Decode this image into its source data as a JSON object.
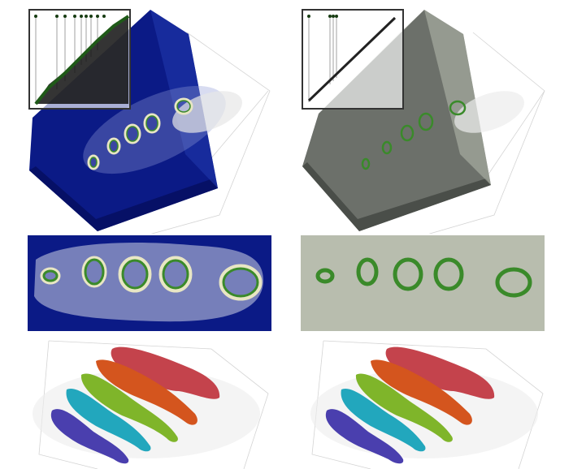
{
  "figure": {
    "colors": {
      "background": "#ffffff",
      "blue_volume": "#0b1a86",
      "blue_volume_dark": "#061066",
      "blue_volume_light": "#1f34a8",
      "gray_volume": "#6c706a",
      "gray_volume_dark": "#4a4e49",
      "gray_volume_light": "#b8bdae",
      "bone_green": "#3a8a2a",
      "bone_cream": "#e8e6c4",
      "bone_red": "#c4434c",
      "bone_orange": "#d4551e",
      "bone_lime": "#7fb52a",
      "bone_cyan": "#22a7bd",
      "bone_indigo": "#4a3fae",
      "tf_curve": "#173c12",
      "bbox": "#c9c9c9"
    },
    "icons": [
      "transfer-function-inset",
      "volume-render",
      "bone-segmentation"
    ]
  }
}
